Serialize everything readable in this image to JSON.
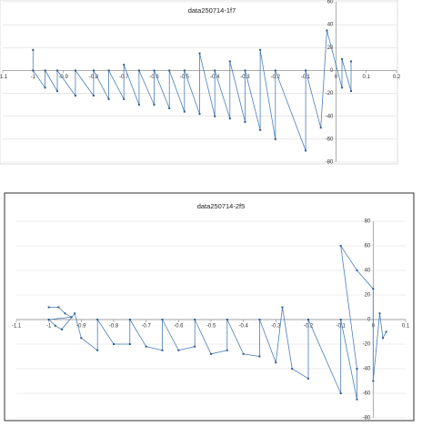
{
  "chart_data": [
    {
      "type": "scatter",
      "title": "data250714-1f7",
      "color": "#4a7ebb",
      "grid": true,
      "xlim": [
        -1.1,
        0.2
      ],
      "xticks": [
        -1.1,
        -1,
        -0.9,
        -0.8,
        -0.7,
        -0.6,
        -0.5,
        -0.4,
        -0.3,
        -0.2,
        -0.1,
        0,
        0.1,
        0.2
      ],
      "ylim": [
        -80,
        60
      ],
      "yticks": [
        -80,
        -60,
        -40,
        -20,
        0,
        20,
        40,
        60
      ],
      "x": [
        -1,
        -1,
        -0.96,
        -0.96,
        -0.92,
        -0.92,
        -0.86,
        -0.86,
        -0.8,
        -0.8,
        -0.75,
        -0.75,
        -0.7,
        -0.7,
        -0.65,
        -0.65,
        -0.6,
        -0.6,
        -0.55,
        -0.55,
        -0.5,
        -0.5,
        -0.45,
        -0.45,
        -0.4,
        -0.4,
        -0.35,
        -0.35,
        -0.3,
        -0.3,
        -0.25,
        -0.25,
        -0.2,
        -0.2,
        -0.1,
        -0.1,
        -0.05,
        -0.03,
        0.02,
        0.02,
        0.05,
        0.05
      ],
      "values": [
        18,
        0,
        -15,
        0,
        -18,
        0,
        -22,
        0,
        -22,
        0,
        -25,
        0,
        -25,
        5,
        -30,
        0,
        -30,
        0,
        -33,
        0,
        -36,
        0,
        -38,
        15,
        -40,
        0,
        -42,
        8,
        -45,
        0,
        -52,
        18,
        -60,
        0,
        -70,
        0,
        -50,
        35,
        -15,
        10,
        -18,
        8
      ]
    },
    {
      "type": "scatter",
      "title": "data250714-2f5",
      "color": "#4a7ebb",
      "grid": true,
      "xlim": [
        -1.1,
        0.1
      ],
      "xticks": [
        -1.1,
        -1,
        -0.9,
        -0.8,
        -0.7,
        -0.6,
        -0.5,
        -0.4,
        -0.3,
        -0.2,
        -0.1,
        0,
        0.1
      ],
      "ylim": [
        -80,
        80
      ],
      "yticks": [
        -80,
        -60,
        -40,
        -20,
        0,
        20,
        40,
        60,
        80
      ],
      "x": [
        -1,
        -0.97,
        -0.95,
        -0.93,
        -1,
        -0.98,
        -0.96,
        -0.92,
        -0.9,
        -0.85,
        -0.85,
        -0.8,
        -0.75,
        -0.75,
        -0.7,
        -0.65,
        -0.65,
        -0.6,
        -0.55,
        -0.55,
        -0.5,
        -0.45,
        -0.45,
        -0.4,
        -0.35,
        -0.35,
        -0.3,
        -0.28,
        -0.25,
        -0.2,
        -0.2,
        -0.1,
        -0.1,
        -0.05,
        -0.05,
        -0.1,
        -0.05,
        0,
        0,
        0.02,
        0.03,
        0.04
      ],
      "values": [
        10,
        10,
        5,
        2,
        0,
        -5,
        -8,
        5,
        -15,
        -25,
        0,
        -20,
        -20,
        0,
        -22,
        -25,
        0,
        -25,
        -22,
        0,
        -28,
        -25,
        0,
        -28,
        -30,
        0,
        -35,
        10,
        -40,
        -48,
        0,
        -60,
        0,
        -65,
        -40,
        60,
        40,
        25,
        -50,
        5,
        -15,
        -10
      ]
    }
  ]
}
